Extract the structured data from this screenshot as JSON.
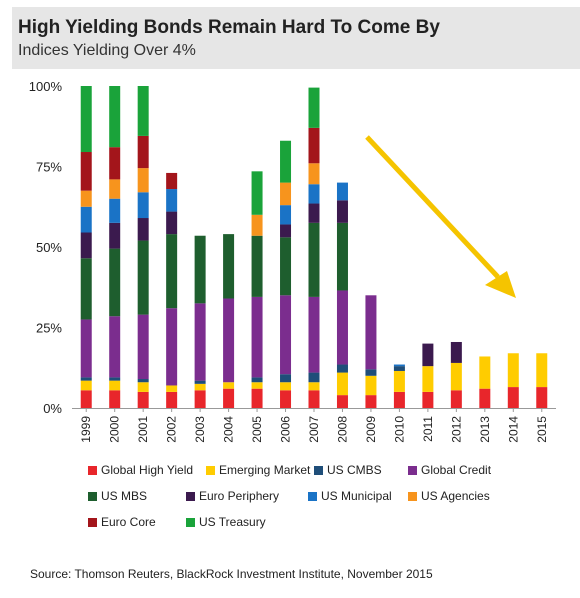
{
  "header": {
    "title": "High Yielding Bonds Remain Hard To Come By",
    "subtitle": "Indices Yielding Over 4%"
  },
  "source": "Source: Thomson Reuters, BlackRock Investment Institute, November 2015",
  "colors": {
    "arrow": "#f5c400",
    "header_bg": "#e6e6e6",
    "axis": "#999999"
  },
  "chart_data": {
    "type": "bar",
    "stacked": true,
    "title": "High Yielding Bonds Remain Hard To Come By",
    "subtitle": "Indices Yielding Over 4%",
    "xlabel": "",
    "ylabel": "",
    "ylim": [
      0,
      100
    ],
    "y_ticks": [
      "0%",
      "25%",
      "50%",
      "75%",
      "100%"
    ],
    "y_tick_values": [
      0,
      25,
      50,
      75,
      100
    ],
    "grid": false,
    "legend_position": "bottom",
    "annotation": "downward trend arrow from 2008 to 2015",
    "categories": [
      "1999",
      "2000",
      "2001",
      "2002",
      "2003",
      "2004",
      "2005",
      "2006",
      "2007",
      "2008",
      "2009",
      "2010",
      "2011",
      "2012",
      "2013",
      "2014",
      "2015"
    ],
    "series": [
      {
        "name": "Global High Yield",
        "color": "#e8262b",
        "values": [
          5.5,
          5.5,
          5,
          5,
          5.5,
          6,
          6,
          5.5,
          5.5,
          4,
          4,
          5,
          5,
          5.5,
          6,
          6.5,
          6.5
        ]
      },
      {
        "name": "Emerging Market",
        "color": "#ffcc00",
        "values": [
          3,
          3,
          3,
          2,
          2,
          2,
          2,
          2.5,
          2.5,
          7,
          6,
          6.5,
          8,
          8.5,
          10,
          10.5,
          10.5
        ]
      },
      {
        "name": "US CMBS",
        "color": "#1f4e79",
        "values": [
          1,
          1,
          1,
          0,
          1,
          0,
          1.5,
          2.5,
          3,
          2.5,
          2,
          1.5,
          0,
          0,
          0,
          0,
          0
        ]
      },
      {
        "name": "Global Credit",
        "color": "#7b2d8e",
        "values": [
          18,
          19,
          20,
          24,
          24,
          26,
          25,
          24.5,
          23.5,
          23,
          23,
          0,
          0,
          0,
          0,
          0,
          0
        ]
      },
      {
        "name": "US MBS",
        "color": "#1e5e2e",
        "values": [
          19,
          21,
          23,
          23,
          21,
          20,
          19,
          18,
          23,
          21,
          0,
          0,
          0,
          0,
          0,
          0,
          0
        ]
      },
      {
        "name": "Euro Periphery",
        "color": "#3b1a4e",
        "values": [
          8,
          8,
          7,
          7,
          0,
          0,
          0,
          4,
          6,
          7,
          0,
          0,
          7,
          6.5,
          0,
          0,
          0
        ]
      },
      {
        "name": "US Municipal",
        "color": "#1a73c6",
        "values": [
          8,
          7.5,
          8,
          7,
          0,
          0,
          0,
          6,
          6,
          5.5,
          0,
          0.5,
          0,
          0,
          0,
          0,
          0
        ]
      },
      {
        "name": "US Agencies",
        "color": "#f7941d",
        "values": [
          5,
          6,
          7.5,
          0,
          0,
          0,
          6.5,
          7,
          6.5,
          0,
          0,
          0,
          0,
          0,
          0,
          0,
          0
        ]
      },
      {
        "name": "Euro Core",
        "color": "#a3151b",
        "values": [
          12,
          10,
          10,
          5,
          0,
          0,
          0,
          0,
          11,
          0,
          0,
          0,
          0,
          0,
          0,
          0,
          0
        ]
      },
      {
        "name": "US Treasury",
        "color": "#1aa33a",
        "values": [
          20.5,
          19,
          15.5,
          0,
          0,
          0,
          13.5,
          13,
          12.5,
          0,
          0,
          0,
          0,
          0,
          0,
          0,
          0
        ]
      }
    ]
  }
}
